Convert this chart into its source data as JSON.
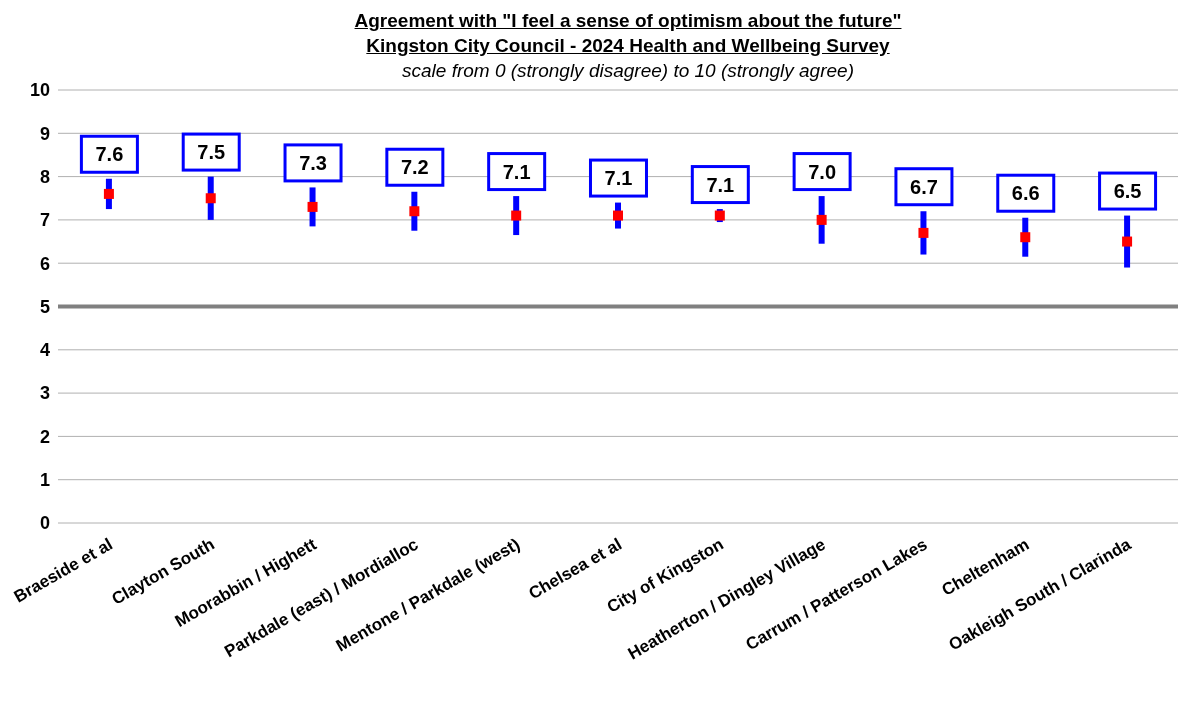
{
  "chart_data": {
    "type": "scatter",
    "title": "Agreement with \"I feel a sense of optimism about the future\"\nKingston City Council - 2024 Health and Wellbeing Survey",
    "subtitle": "scale from 0 (strongly disagree) to 10 (strongly agree)",
    "categories": [
      "Braeside et al",
      "Clayton South",
      "Moorabbin / Highett",
      "Parkdale (east) / Mordialloc",
      "Mentone / Parkdale (west)",
      "Chelsea et al",
      "City of Kingston",
      "Heatherton / Dingley Village",
      "Carrum / Patterson Lakes",
      "Cheltenham",
      "Oakleigh South / Clarinda"
    ],
    "series": [
      {
        "color": "#ff0000",
        "values": [
          7.6,
          7.5,
          7.3,
          7.2,
          7.1,
          7.1,
          7.1,
          7.0,
          6.7,
          6.6,
          6.5
        ],
        "errors": [
          0.35,
          0.5,
          0.45,
          0.45,
          0.45,
          0.3,
          0.15,
          0.55,
          0.5,
          0.45,
          0.6
        ],
        "value_labels": [
          "7.6",
          "7.5",
          "7.3",
          "7.2",
          "7.1",
          "7.1",
          "7.1",
          "7.0",
          "6.7",
          "6.6",
          "6.5"
        ]
      }
    ],
    "ylim": [
      0,
      10
    ],
    "yticks": [
      0,
      1,
      2,
      3,
      4,
      5,
      6,
      7,
      8,
      9,
      10
    ],
    "grid": "y",
    "marker": "square",
    "legend": false,
    "ref_lines": [
      {
        "axis": "y",
        "value": 5,
        "color": "#808080"
      }
    ]
  }
}
